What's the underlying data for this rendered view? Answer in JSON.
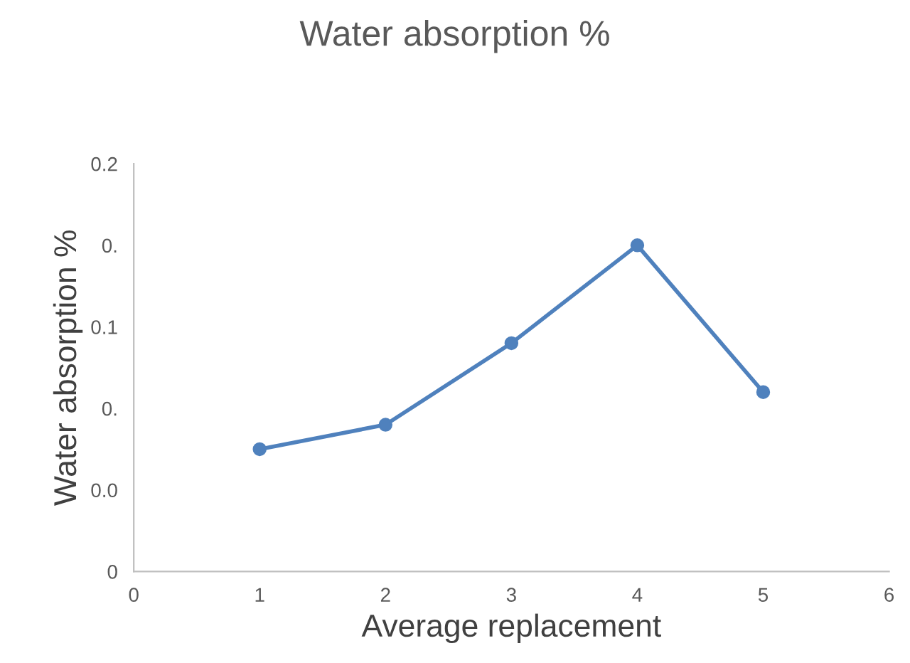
{
  "chart_data": {
    "type": "line",
    "title": "Water absorption %",
    "xlabel": "Average replacement",
    "ylabel": "Water absorption %",
    "x": [
      1,
      2,
      3,
      4,
      5
    ],
    "series": [
      {
        "color": "#4f81bd",
        "values": [
          0.06,
          0.072,
          0.112,
          0.16,
          0.088
        ]
      }
    ],
    "xlim": [
      0,
      6
    ],
    "xticks": [
      0,
      1,
      2,
      3,
      4,
      5,
      6
    ],
    "ylim": [
      0,
      0.2
    ],
    "yticks": [
      0,
      {
        "value": 0.04,
        "label": "0.0"
      },
      {
        "value": 0.08,
        "label": "0."
      },
      {
        "value": 0.12,
        "label": "0.1"
      },
      {
        "value": 0.16,
        "label": "0."
      },
      0.2
    ],
    "marker": "circle",
    "line_style": "solid",
    "grid": false,
    "legend": false
  }
}
